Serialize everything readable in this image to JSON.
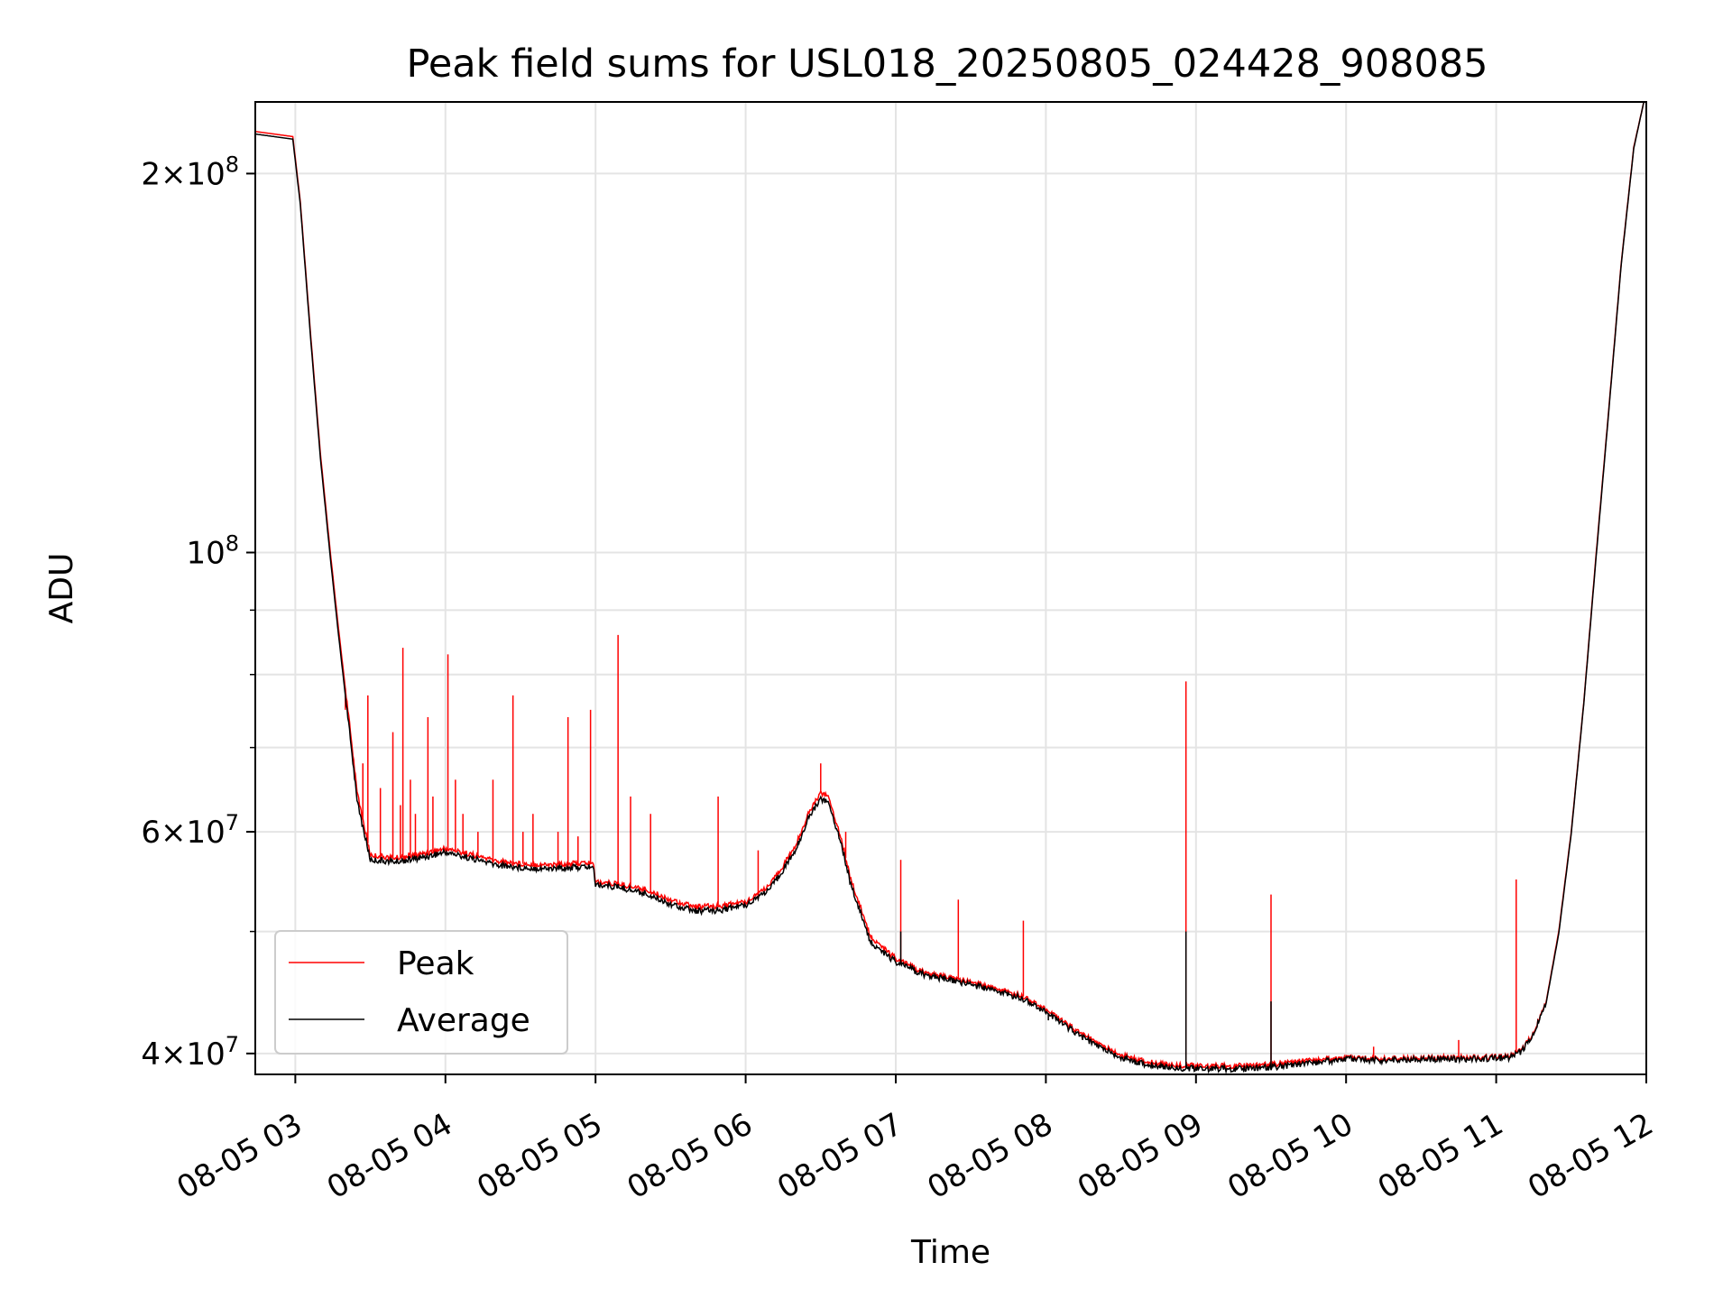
{
  "chart_data": {
    "type": "line",
    "title": "Peak field sums for USL018_20250805_024428_908085",
    "xlabel": "Time",
    "ylabel": "ADU",
    "yscale": "log",
    "ylim": [
      38500000,
      228000000
    ],
    "xlim": [
      "08-05 02:44",
      "08-05 12:00"
    ],
    "grid": true,
    "legend_position": "lower-left",
    "xtick_labels": [
      "08-05 03",
      "08-05 04",
      "08-05 05",
      "08-05 06",
      "08-05 07",
      "08-05 08",
      "08-05 09",
      "08-05 10",
      "08-05 11",
      "08-05 12"
    ],
    "ytick_labels": [
      {
        "value": 40000000,
        "mantissa": "4",
        "exponent": "7"
      },
      {
        "value": 60000000,
        "mantissa": "6",
        "exponent": "7"
      },
      {
        "value": 100000000,
        "mantissa": "",
        "exponent": "8"
      },
      {
        "value": 200000000,
        "mantissa": "2",
        "exponent": "8"
      }
    ],
    "ytick_multiplier_sign": "×",
    "ytick_base": "10",
    "minor_yticks": [
      50000000,
      70000000,
      80000000,
      90000000
    ],
    "series": [
      {
        "name": "Peak",
        "color": "#ff0000",
        "x": [
          "08-05 02:44",
          "08-05 02:59",
          "08-05 03:02",
          "08-05 03:06",
          "08-05 03:10",
          "08-05 03:14",
          "08-05 03:17",
          "08-05 03:20",
          "08-05 03:25",
          "08-05 03:30",
          "08-05 03:40",
          "08-05 03:50",
          "08-05 04:00",
          "08-05 04:10",
          "08-05 04:20",
          "08-05 04:30",
          "08-05 04:40",
          "08-05 04:50",
          "08-05 04:59",
          "08-05 05:00",
          "08-05 05:10",
          "08-05 05:20",
          "08-05 05:30",
          "08-05 05:40",
          "08-05 05:50",
          "08-05 06:00",
          "08-05 06:10",
          "08-05 06:20",
          "08-05 06:25",
          "08-05 06:30",
          "08-05 06:33",
          "08-05 06:38",
          "08-05 06:42",
          "08-05 06:50",
          "08-05 07:00",
          "08-05 07:10",
          "08-05 07:20",
          "08-05 07:30",
          "08-05 07:40",
          "08-05 07:50",
          "08-05 08:00",
          "08-05 08:10",
          "08-05 08:20",
          "08-05 08:30",
          "08-05 08:40",
          "08-05 08:50",
          "08-05 09:00",
          "08-05 09:15",
          "08-05 09:30",
          "08-05 09:45",
          "08-05 10:00",
          "08-05 10:15",
          "08-05 10:30",
          "08-05 10:45",
          "08-05 11:00",
          "08-05 11:05",
          "08-05 11:10",
          "08-05 11:15",
          "08-05 11:20",
          "08-05 11:25",
          "08-05 11:30",
          "08-05 11:35",
          "08-05 11:40",
          "08-05 11:45",
          "08-05 11:50",
          "08-05 11:55",
          "08-05 11:59"
        ],
        "y": [
          216000000,
          214000000,
          190000000,
          150000000,
          120000000,
          100000000,
          88000000,
          78000000,
          64000000,
          57500000,
          57200000,
          57600000,
          58200000,
          57600000,
          56900000,
          56600000,
          56500000,
          56600000,
          56700000,
          54800000,
          54500000,
          54000000,
          53000000,
          52300000,
          52400000,
          52800000,
          54500000,
          58500000,
          62000000,
          64500000,
          64000000,
          59500000,
          55000000,
          49500000,
          47600000,
          46500000,
          46000000,
          45600000,
          45000000,
          44500000,
          43400000,
          42000000,
          40800000,
          39900000,
          39400000,
          39200000,
          39100000,
          39100000,
          39200000,
          39500000,
          39700000,
          39600000,
          39700000,
          39700000,
          39750000,
          39800000,
          40200000,
          41500000,
          44000000,
          50000000,
          60000000,
          76000000,
          100000000,
          130000000,
          170000000,
          210000000,
          228000000
        ]
      },
      {
        "name": "Average",
        "color": "#000000",
        "x": [
          "08-05 02:44",
          "08-05 02:59",
          "08-05 03:02",
          "08-05 03:06",
          "08-05 03:10",
          "08-05 03:14",
          "08-05 03:17",
          "08-05 03:20",
          "08-05 03:25",
          "08-05 03:30",
          "08-05 03:40",
          "08-05 03:50",
          "08-05 04:00",
          "08-05 04:10",
          "08-05 04:20",
          "08-05 04:30",
          "08-05 04:40",
          "08-05 04:50",
          "08-05 04:59",
          "08-05 05:00",
          "08-05 05:10",
          "08-05 05:20",
          "08-05 05:30",
          "08-05 05:40",
          "08-05 05:50",
          "08-05 06:00",
          "08-05 06:10",
          "08-05 06:20",
          "08-05 06:25",
          "08-05 06:30",
          "08-05 06:33",
          "08-05 06:38",
          "08-05 06:42",
          "08-05 06:50",
          "08-05 07:00",
          "08-05 07:10",
          "08-05 07:20",
          "08-05 07:30",
          "08-05 07:40",
          "08-05 07:50",
          "08-05 08:00",
          "08-05 08:10",
          "08-05 08:20",
          "08-05 08:30",
          "08-05 08:40",
          "08-05 08:50",
          "08-05 09:00",
          "08-05 09:15",
          "08-05 09:30",
          "08-05 09:45",
          "08-05 10:00",
          "08-05 10:15",
          "08-05 10:30",
          "08-05 10:45",
          "08-05 11:00",
          "08-05 11:05",
          "08-05 11:10",
          "08-05 11:15",
          "08-05 11:20",
          "08-05 11:25",
          "08-05 11:30",
          "08-05 11:35",
          "08-05 11:40",
          "08-05 11:45",
          "08-05 11:50",
          "08-05 11:55",
          "08-05 11:59"
        ],
        "y": [
          215000000,
          213000000,
          189000000,
          149000000,
          119000000,
          99000000,
          87000000,
          77000000,
          63000000,
          57000000,
          56800000,
          57200000,
          57800000,
          57200000,
          56500000,
          56200000,
          56100000,
          56200000,
          56300000,
          54500000,
          54200000,
          53600000,
          52600000,
          51900000,
          52000000,
          52500000,
          54100000,
          58000000,
          61500000,
          63800000,
          63300000,
          59000000,
          54500000,
          49000000,
          47300000,
          46300000,
          45800000,
          45400000,
          44800000,
          44300000,
          43200000,
          41800000,
          40600000,
          39700000,
          39200000,
          39000000,
          38900000,
          38900000,
          39000000,
          39300000,
          39600000,
          39500000,
          39600000,
          39600000,
          39650000,
          39700000,
          40100000,
          41400000,
          43900000,
          49800000,
          59800000,
          75800000,
          99500000,
          129500000,
          169500000,
          209500000,
          228000000
        ]
      }
    ],
    "peak_spikes": [
      {
        "x": "08-05 03:15",
        "y": 95000000
      },
      {
        "x": "08-05 03:20",
        "y": 75000000
      },
      {
        "x": "08-05 03:27",
        "y": 68000000
      },
      {
        "x": "08-05 03:29",
        "y": 77000000
      },
      {
        "x": "08-05 03:34",
        "y": 65000000
      },
      {
        "x": "08-05 03:39",
        "y": 72000000
      },
      {
        "x": "08-05 03:42",
        "y": 63000000
      },
      {
        "x": "08-05 03:43",
        "y": 84000000
      },
      {
        "x": "08-05 03:46",
        "y": 66000000
      },
      {
        "x": "08-05 03:48",
        "y": 62000000
      },
      {
        "x": "08-05 03:53",
        "y": 74000000
      },
      {
        "x": "08-05 03:55",
        "y": 64000000
      },
      {
        "x": "08-05 04:01",
        "y": 83000000
      },
      {
        "x": "08-05 04:04",
        "y": 66000000
      },
      {
        "x": "08-05 04:07",
        "y": 62000000
      },
      {
        "x": "08-05 04:13",
        "y": 60000000
      },
      {
        "x": "08-05 04:19",
        "y": 66000000
      },
      {
        "x": "08-05 04:27",
        "y": 77000000
      },
      {
        "x": "08-05 04:31",
        "y": 60000000
      },
      {
        "x": "08-05 04:35",
        "y": 62000000
      },
      {
        "x": "08-05 04:45",
        "y": 60000000
      },
      {
        "x": "08-05 04:49",
        "y": 74000000
      },
      {
        "x": "08-05 04:53",
        "y": 59500000
      },
      {
        "x": "08-05 04:58",
        "y": 75000000
      },
      {
        "x": "08-05 05:09",
        "y": 86000000
      },
      {
        "x": "08-05 05:14",
        "y": 64000000
      },
      {
        "x": "08-05 05:22",
        "y": 62000000
      },
      {
        "x": "08-05 05:49",
        "y": 64000000
      },
      {
        "x": "08-05 06:05",
        "y": 58000000
      },
      {
        "x": "08-05 06:30",
        "y": 68000000
      },
      {
        "x": "08-05 06:40",
        "y": 60000000
      },
      {
        "x": "08-05 07:02",
        "y": 57000000
      },
      {
        "x": "08-05 07:25",
        "y": 53000000
      },
      {
        "x": "08-05 07:51",
        "y": 51000000
      },
      {
        "x": "08-05 08:56",
        "y": 79000000
      },
      {
        "x": "08-05 09:30",
        "y": 53500000
      },
      {
        "x": "08-05 10:11",
        "y": 40500000
      },
      {
        "x": "08-05 10:45",
        "y": 41000000
      },
      {
        "x": "08-05 11:08",
        "y": 55000000
      }
    ],
    "average_spikes": [
      {
        "x": "08-05 08:56",
        "y": 50000000
      },
      {
        "x": "08-05 09:30",
        "y": 44000000
      },
      {
        "x": "08-05 07:02",
        "y": 50000000
      },
      {
        "x": "08-05 08:01",
        "y": 42500000
      }
    ]
  }
}
